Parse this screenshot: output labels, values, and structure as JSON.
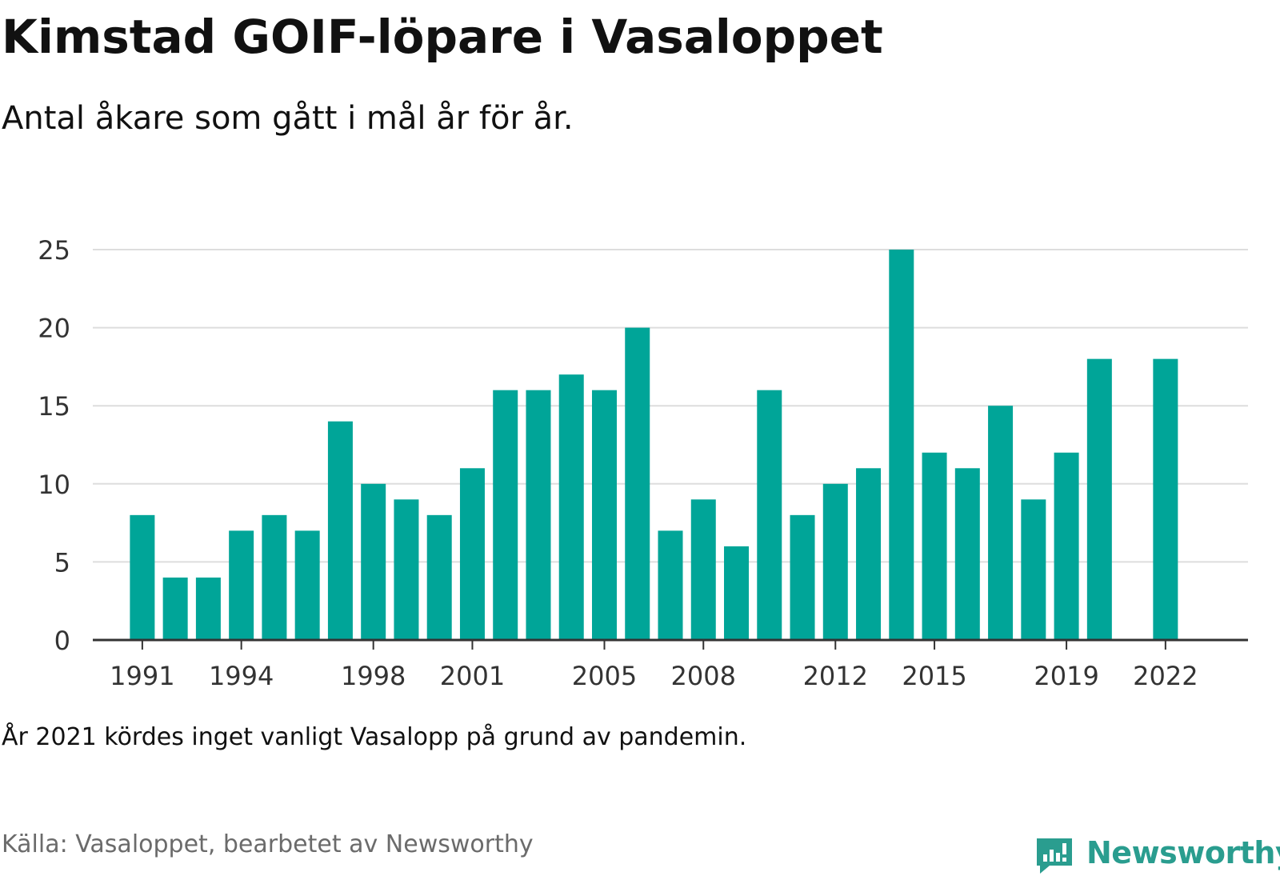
{
  "title": "Kimstad GOIF-löpare i Vasaloppet",
  "subtitle": "Antal åkare som gått i mål år för år.",
  "note": "År 2021 kördes inget vanligt Vasalopp på grund av pandemin.",
  "source": "Källa: Vasaloppet, bearbetet av Newsworthy",
  "brand": {
    "name": "Newsworthy",
    "icon": "newsworthy-logo-icon",
    "color": "#2a9d8f"
  },
  "chart_data": {
    "type": "bar",
    "title": "Kimstad GOIF-löpare i Vasaloppet",
    "subtitle": "Antal åkare som gått i mål år för år.",
    "xlabel": "",
    "ylabel": "",
    "ylim": [
      0,
      25
    ],
    "yticks": [
      0,
      5,
      10,
      15,
      20,
      25
    ],
    "xticks": [
      1991,
      1994,
      1998,
      2001,
      2005,
      2008,
      2012,
      2015,
      2019,
      2022
    ],
    "grid": true,
    "legend": "none",
    "bar_color": "#00a598",
    "x": [
      1991,
      1992,
      1993,
      1994,
      1995,
      1996,
      1997,
      1998,
      1999,
      2000,
      2001,
      2002,
      2003,
      2004,
      2005,
      2006,
      2007,
      2008,
      2009,
      2010,
      2011,
      2012,
      2013,
      2014,
      2015,
      2016,
      2017,
      2018,
      2019,
      2020,
      2022
    ],
    "values": [
      8,
      4,
      4,
      7,
      8,
      7,
      14,
      10,
      9,
      8,
      11,
      16,
      16,
      17,
      16,
      20,
      7,
      9,
      6,
      16,
      8,
      10,
      11,
      25,
      12,
      11,
      15,
      9,
      12,
      18,
      18
    ]
  }
}
